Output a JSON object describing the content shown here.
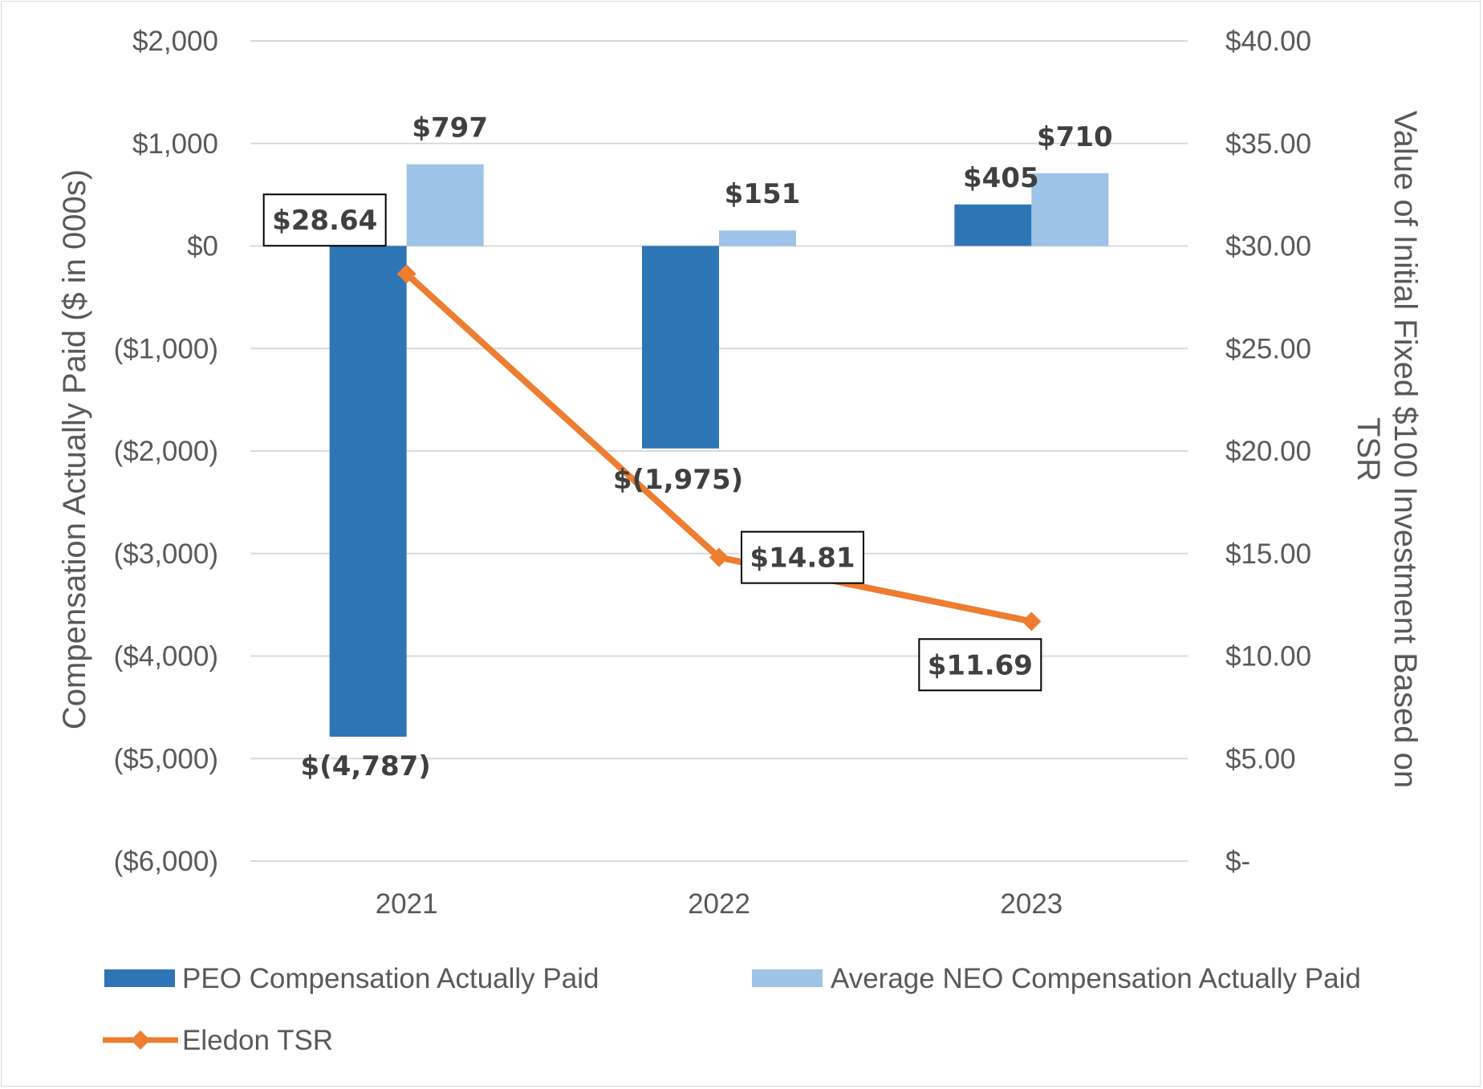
{
  "chart_data": {
    "type": "bar",
    "categories": [
      "2021",
      "2022",
      "2023"
    ],
    "series": [
      {
        "name": "PEO Compensation Actually Paid",
        "type": "bar",
        "axis": "left",
        "color": "#2E75B6",
        "values": [
          -4787,
          -1975,
          405
        ],
        "labels": [
          "$(4,787)",
          "$(1,975)",
          "$405"
        ]
      },
      {
        "name": "Average NEO Compensation Actually Paid",
        "type": "bar",
        "axis": "left",
        "color": "#9DC3E6",
        "values": [
          797,
          151,
          710
        ],
        "labels": [
          "$797",
          "$151",
          "$710"
        ]
      },
      {
        "name": "Eledon TSR",
        "type": "line",
        "axis": "right",
        "color": "#ED7D31",
        "marker": "diamond",
        "values": [
          28.64,
          14.81,
          11.69
        ],
        "labels": [
          "$28.64",
          "$14.81",
          "$11.69"
        ]
      }
    ],
    "ylabel": "Compensation Actually Paid ($ in 000s)",
    "ylabel_right": "Value of Initial Fixed $100 Investment Based on TSR",
    "ylim": [
      -6000,
      2000
    ],
    "ylim_right": [
      0,
      40
    ],
    "yticks": [
      {
        "value": 2000,
        "label": "$2,000"
      },
      {
        "value": 1000,
        "label": "$1,000"
      },
      {
        "value": 0,
        "label": "$0"
      },
      {
        "value": -1000,
        "label": "($1,000)"
      },
      {
        "value": -2000,
        "label": "($2,000)"
      },
      {
        "value": -3000,
        "label": "($3,000)"
      },
      {
        "value": -4000,
        "label": "($4,000)"
      },
      {
        "value": -5000,
        "label": "($5,000)"
      },
      {
        "value": -6000,
        "label": "($6,000)"
      }
    ],
    "yticks_right": [
      {
        "value": 40,
        "label": "$40.00"
      },
      {
        "value": 35,
        "label": "$35.00"
      },
      {
        "value": 30,
        "label": "$30.00"
      },
      {
        "value": 25,
        "label": "$25.00"
      },
      {
        "value": 20,
        "label": "$20.00"
      },
      {
        "value": 15,
        "label": "$15.00"
      },
      {
        "value": 10,
        "label": "$10.00"
      },
      {
        "value": 5,
        "label": "$5.00"
      },
      {
        "value": 0,
        "label": "$-"
      }
    ],
    "grid": true,
    "legend_position": "bottom",
    "gridline_color": "#d9d9d9"
  }
}
